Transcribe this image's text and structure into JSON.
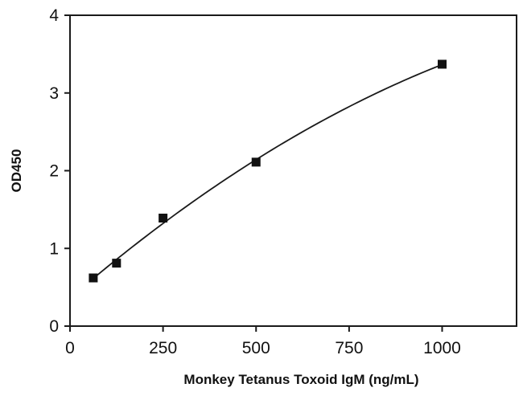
{
  "chart_data": {
    "type": "scatter",
    "title": "",
    "xlabel": "Monkey Tetanus Toxoid IgM (ng/mL)",
    "ylabel": "OD450",
    "xlim": [
      0,
      1200
    ],
    "ylim": [
      0,
      4
    ],
    "x_ticks": [
      0,
      250,
      500,
      750,
      1000
    ],
    "y_ticks": [
      0,
      1,
      2,
      3,
      4
    ],
    "grid": false,
    "legend": "none",
    "series": [
      {
        "x": [
          62.5,
          125,
          250,
          500,
          1000
        ],
        "y": [
          0.62,
          0.81,
          1.39,
          2.11,
          3.37
        ],
        "marker": "square",
        "fit_curve": true
      }
    ],
    "colors": {
      "axis": "#1a1a1a",
      "marker": "#111111",
      "curve": "#1a1a1a"
    }
  }
}
